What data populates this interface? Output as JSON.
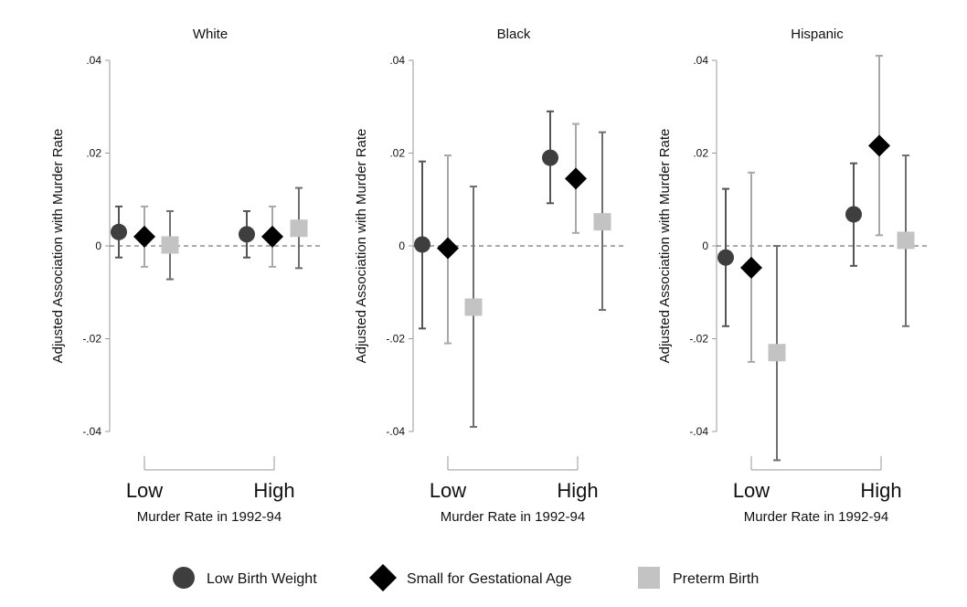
{
  "chart_data": {
    "type": "scatter",
    "subtype": "dot-and-whisker",
    "ylim": [
      -0.04,
      0.04
    ],
    "yticks": [
      ".04",
      ".02",
      "0",
      "-.02",
      "-.04"
    ],
    "ytick_values": [
      0.04,
      0.02,
      0,
      -0.02,
      -0.04
    ],
    "reference_line": 0,
    "grid": false,
    "legend_position": "bottom",
    "series_styles": [
      {
        "name": "Low Birth Weight",
        "marker": "circle",
        "marker_color": "#3e3e3e",
        "ci_color": "#555555"
      },
      {
        "name": "Small for Gestational Age",
        "marker": "diamond",
        "marker_color": "#000000",
        "ci_color": "#a8a8a8"
      },
      {
        "name": "Preterm Birth",
        "marker": "square",
        "marker_color": "#c3c3c3",
        "ci_color": "#6f6f6f"
      }
    ],
    "panels": [
      {
        "title": "White",
        "ylabel": "Adjusted Association with Murder Rate",
        "xlabel": "Murder Rate in 1992-94",
        "categories": [
          "Low",
          "High"
        ],
        "series": [
          {
            "name": "Low Birth Weight",
            "values": [
              0.003,
              0.0025
            ],
            "ci_low": [
              -0.0025,
              -0.0025
            ],
            "ci_high": [
              0.0085,
              0.0075
            ]
          },
          {
            "name": "Small for Gestational Age",
            "values": [
              0.002,
              0.002
            ],
            "ci_low": [
              -0.0045,
              -0.0045
            ],
            "ci_high": [
              0.0085,
              0.0085
            ]
          },
          {
            "name": "Preterm Birth",
            "values": [
              0.0002,
              0.0038
            ],
            "ci_low": [
              -0.0072,
              -0.0048
            ],
            "ci_high": [
              0.0075,
              0.0125
            ]
          }
        ]
      },
      {
        "title": "Black",
        "ylabel": "Adjusted Association with Murder Rate",
        "xlabel": "Murder Rate in 1992-94",
        "categories": [
          "Low",
          "High"
        ],
        "series": [
          {
            "name": "Low Birth Weight",
            "values": [
              0.0003,
              0.019
            ],
            "ci_low": [
              -0.0178,
              0.0092
            ],
            "ci_high": [
              0.0182,
              0.029
            ]
          },
          {
            "name": "Small for Gestational Age",
            "values": [
              -0.0005,
              0.0145
            ],
            "ci_low": [
              -0.021,
              0.0028
            ],
            "ci_high": [
              0.0195,
              0.0263
            ]
          },
          {
            "name": "Preterm Birth",
            "values": [
              -0.0132,
              0.0052
            ],
            "ci_low": [
              -0.039,
              -0.0138
            ],
            "ci_high": [
              0.0128,
              0.0245
            ]
          }
        ]
      },
      {
        "title": "Hispanic",
        "ylabel": "Adjusted Association with Murder Rate",
        "xlabel": "Murder Rate in 1992-94",
        "categories": [
          "Low",
          "High"
        ],
        "series": [
          {
            "name": "Low Birth Weight",
            "values": [
              -0.0025,
              0.0068
            ],
            "ci_low": [
              -0.0173,
              -0.0043
            ],
            "ci_high": [
              0.0123,
              0.0178
            ]
          },
          {
            "name": "Small for Gestational Age",
            "values": [
              -0.0047,
              0.0216
            ],
            "ci_low": [
              -0.025,
              0.0023
            ],
            "ci_high": [
              0.0158,
              0.041
            ]
          },
          {
            "name": "Preterm Birth",
            "values": [
              -0.023,
              0.0012
            ],
            "ci_low": [
              -0.0462,
              -0.0173
            ],
            "ci_high": [
              0.0,
              0.0195
            ]
          }
        ]
      }
    ],
    "legend": [
      "Low Birth Weight",
      "Small for Gestational Age",
      "Preterm Birth"
    ]
  }
}
